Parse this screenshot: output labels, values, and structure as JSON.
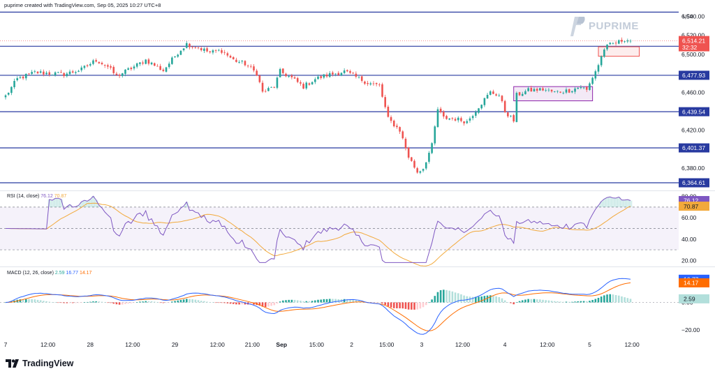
{
  "header": {
    "credit": "puprime created with TradingView.com, Sep 05, 2025 10:27 UTC+8",
    "currency": "USD",
    "watermark": "PUPRIME"
  },
  "footer": {
    "logo_text": "TradingView"
  },
  "colors": {
    "up": "#26a69a",
    "down": "#ef5350",
    "level": "#283aa0",
    "rsi": "#7e57c2",
    "rsi_ma": "#f2a93b",
    "macd": "#2962ff",
    "signal": "#ff6d00",
    "hist_pos": "#26a69a",
    "hist_pos_light": "#b2dfdb",
    "hist_neg": "#ef5350",
    "hist_neg_light": "#ffcdd2"
  },
  "rsi_legend": {
    "label": "RSI (14, close)",
    "value": "76.12",
    "ma": "70.87"
  },
  "macd_legend": {
    "label": "MACD (12, 26, close)",
    "hist": "2.59",
    "macd": "16.77",
    "signal": "14.17"
  },
  "chart_data": [
    {
      "type": "candlestick",
      "yaxis": {
        "ticks": [
          6540,
          6520,
          6500,
          6480,
          6460,
          6440,
          6420,
          6400,
          6380
        ],
        "tick_labels": [
          "6,540.00",
          "6,520.00",
          "6,500.00",
          "6,480.00",
          "6,460.00",
          "6,440.00",
          "6,420.00",
          "6,400.00",
          "6,380.00"
        ],
        "range": [
          6358,
          6547
        ]
      },
      "xaxis": {
        "labels": [
          "7",
          "12:00",
          "28",
          "12:00",
          "29",
          "12:00",
          "21:00",
          "Sep",
          "15:00",
          "2",
          "15:00",
          "3",
          "12:00",
          "4",
          "12:00",
          "5",
          "12:00"
        ],
        "positions": [
          0,
          14.5,
          29,
          43.5,
          58,
          72.5,
          84.5,
          94.5,
          106.5,
          118.5,
          130.5,
          142.5,
          156.5,
          171,
          185.5,
          200,
          214.5
        ],
        "bars_visible": 215
      },
      "levels": [
        {
          "value": 6544.5,
          "label": ""
        },
        {
          "value": 6508.53,
          "label": "6,508.53"
        },
        {
          "value": 6477.93,
          "label": "6,477.93"
        },
        {
          "value": 6439.54,
          "label": "6,439.54"
        },
        {
          "value": 6401.37,
          "label": "6,401.37"
        },
        {
          "value": 6364.61,
          "label": "6,364.61"
        }
      ],
      "last_price": {
        "value": 6514.21,
        "label": "6,514.21",
        "countdown": "32:32"
      },
      "highlight_boxes": [
        {
          "from": 174,
          "to": 201,
          "low": 6451,
          "high": 6466,
          "color": "#8e24aa"
        },
        {
          "from": 203,
          "to": 217,
          "low": 6498,
          "high": 6508,
          "color": "#ef5350"
        }
      ],
      "anchors": [
        [
          0,
          6456
        ],
        [
          4,
          6474
        ],
        [
          10,
          6481
        ],
        [
          20,
          6479
        ],
        [
          26,
          6484
        ],
        [
          29,
          6490
        ],
        [
          31,
          6494
        ],
        [
          35,
          6487
        ],
        [
          38,
          6477
        ],
        [
          44,
          6487
        ],
        [
          48,
          6494
        ],
        [
          54,
          6483
        ],
        [
          59,
          6502
        ],
        [
          62,
          6511
        ],
        [
          66,
          6507
        ],
        [
          70,
          6502
        ],
        [
          74,
          6504
        ],
        [
          78,
          6494
        ],
        [
          82,
          6490
        ],
        [
          86,
          6480
        ],
        [
          88,
          6460
        ],
        [
          92,
          6466
        ],
        [
          94,
          6482
        ],
        [
          98,
          6475
        ],
        [
          102,
          6466
        ],
        [
          106,
          6474
        ],
        [
          110,
          6478
        ],
        [
          116,
          6482
        ],
        [
          120,
          6476
        ],
        [
          124,
          6470
        ],
        [
          128,
          6467
        ],
        [
          131,
          6432
        ],
        [
          135,
          6420
        ],
        [
          138,
          6392
        ],
        [
          141,
          6376
        ],
        [
          143,
          6380
        ],
        [
          146,
          6404
        ],
        [
          148,
          6442
        ],
        [
          150,
          6433
        ],
        [
          154,
          6432
        ],
        [
          158,
          6429
        ],
        [
          162,
          6445
        ],
        [
          166,
          6460
        ],
        [
          169,
          6457
        ],
        [
          171,
          6440
        ],
        [
          174,
          6430
        ],
        [
          175,
          6457
        ],
        [
          179,
          6462
        ],
        [
          184,
          6463
        ],
        [
          188,
          6460
        ],
        [
          193,
          6462
        ],
        [
          197,
          6466
        ],
        [
          199,
          6462
        ],
        [
          201,
          6476
        ],
        [
          203,
          6489
        ],
        [
          205,
          6506
        ],
        [
          207,
          6510
        ],
        [
          210,
          6513
        ],
        [
          212,
          6516
        ],
        [
          214,
          6514.21
        ]
      ]
    },
    {
      "type": "line",
      "name": "RSI (14, close)",
      "yaxis": {
        "ticks": [
          80,
          60,
          40,
          20
        ],
        "tick_labels": [
          "80.00",
          "60.00",
          "40.00",
          "20.00"
        ],
        "range": [
          15,
          83
        ]
      },
      "band": {
        "upper": 70,
        "middle": 50,
        "lower": 30
      },
      "last": {
        "rsi": 76.12,
        "rsi_label": "76.12",
        "ma": 70.87,
        "ma_label": "70.87"
      }
    },
    {
      "type": "bar+line",
      "name": "MACD (12, 26, close)",
      "yaxis": {
        "ticks": [
          0,
          -20
        ],
        "tick_labels": [
          "0.00",
          "−20.00"
        ],
        "range": [
          -26,
          25
        ]
      },
      "last": {
        "macd": 16.77,
        "macd_label": "16.77",
        "signal": 14.17,
        "signal_label": "14.17",
        "hist": 2.59,
        "hist_label": "2.59"
      }
    }
  ]
}
